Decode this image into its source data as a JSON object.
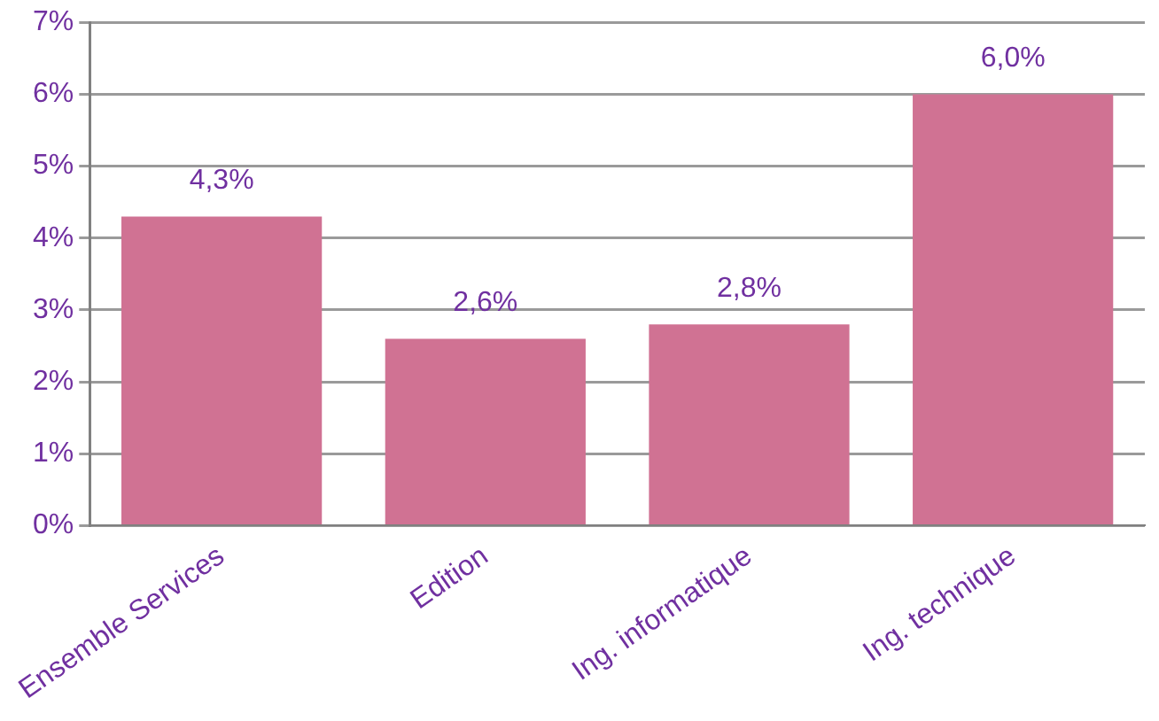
{
  "chart_data": {
    "type": "bar",
    "categories": [
      "Ensemble Services",
      "Edition",
      "Ing. informatique",
      "Ing. technique"
    ],
    "values": [
      4.3,
      2.6,
      2.8,
      6.0
    ],
    "color": "#d07293",
    "value_labels": [
      "4,3%",
      "2,6%",
      "2,8%",
      "6,0%"
    ],
    "ylim": [
      0,
      7
    ],
    "yticks": [
      {
        "value": 0,
        "label": "0%"
      },
      {
        "value": 1,
        "label": "1%"
      },
      {
        "value": 2,
        "label": "2%"
      },
      {
        "value": 3,
        "label": "3%"
      },
      {
        "value": 4,
        "label": "4%"
      },
      {
        "value": 5,
        "label": "5%"
      },
      {
        "value": 6,
        "label": "6%"
      },
      {
        "value": 7,
        "label": "7%"
      }
    ],
    "grid": "y",
    "legend": false
  }
}
